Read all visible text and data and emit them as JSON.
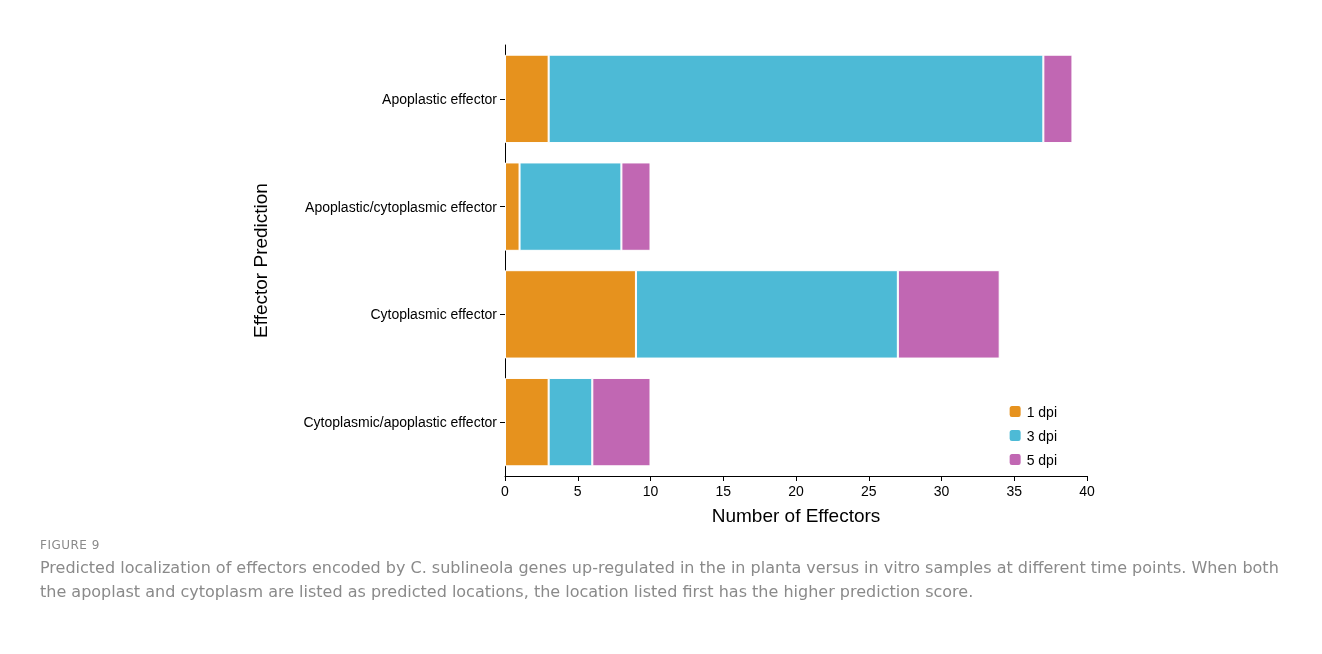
{
  "chart_data": {
    "type": "bar",
    "orientation": "horizontal",
    "stacked": true,
    "categories": [
      "Apoplastic effector",
      "Apoplastic/cytoplasmic effector",
      "Cytoplasmic effector",
      "Cytoplasmic/apoplastic effector"
    ],
    "series": [
      {
        "name": "1 dpi",
        "color": "#e6921e",
        "values": [
          3,
          1,
          9,
          3
        ]
      },
      {
        "name": "3 dpi",
        "color": "#4dbad6",
        "values": [
          34,
          7,
          18,
          3
        ]
      },
      {
        "name": "5 dpi",
        "color": "#c167b3",
        "values": [
          2,
          2,
          7,
          4
        ]
      }
    ],
    "xlabel": "Number of Effectors",
    "ylabel": "Effector Prediction",
    "xlim": [
      0,
      40
    ],
    "xticks": [
      0,
      5,
      10,
      15,
      20,
      25,
      30,
      35,
      40
    ],
    "grid": false,
    "legend": "bottom right",
    "annotations": [
      "FIGURE 9",
      "Predicted localization of effectors encoded by C. sublineola genes up-regulated in the in planta versus in vitro samples at different time points. When both the apoplast and cytoplasm are listed as predicted locations, the location listed first has the higher prediction score."
    ]
  }
}
